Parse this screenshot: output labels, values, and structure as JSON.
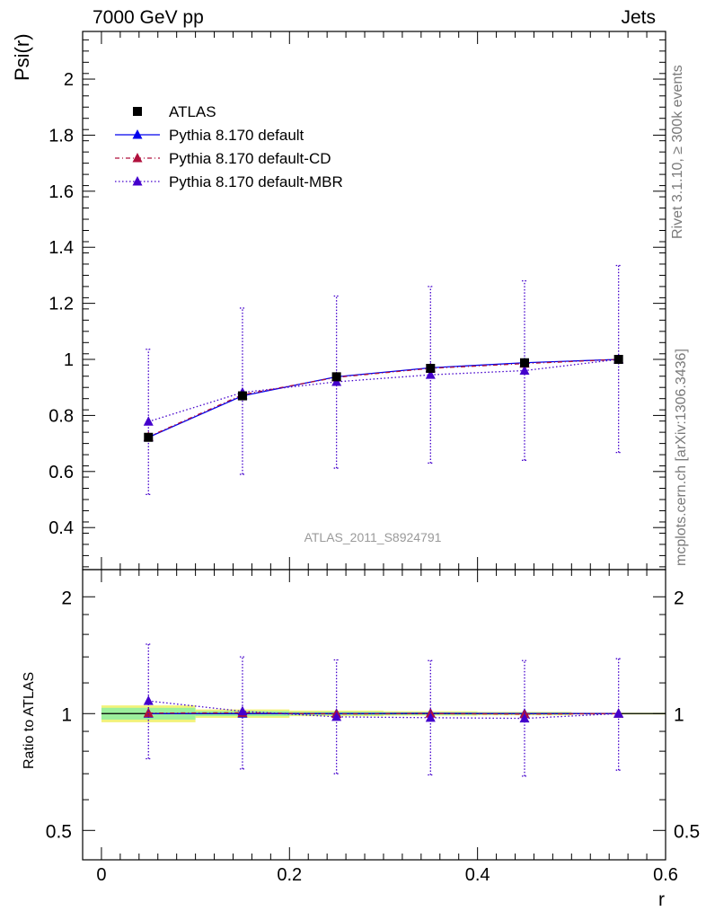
{
  "header": {
    "left": "7000 GeV pp",
    "right": "Jets"
  },
  "side_labels": {
    "rivet": "Rivet 3.1.10, ≥ 300k events",
    "mcplots": "mcplots.cern.ch [arXiv:1306.3436]"
  },
  "chart_data": [
    {
      "type": "scatter",
      "panel": "main",
      "ylabel": "Psi(r)",
      "watermark": "ATLAS_2011_S8924791",
      "xlim": [
        -0.02,
        0.6
      ],
      "ylim": [
        0.25,
        2.17
      ],
      "yticks": [
        0.4,
        0.6,
        0.8,
        1,
        1.2,
        1.4,
        1.6,
        1.8,
        2
      ],
      "ytick_labels": [
        "0.4",
        "0.6",
        "0.8",
        "1",
        "1.2",
        "1.4",
        "1.6",
        "1.8",
        "2"
      ],
      "legend_position": "top-left",
      "series": [
        {
          "name": "ATLAS",
          "marker": "square",
          "color": "#000000",
          "line": "none",
          "x": [
            0.05,
            0.15,
            0.25,
            0.35,
            0.45,
            0.55
          ],
          "y": [
            0.722,
            0.87,
            0.938,
            0.968,
            0.988,
            1.0
          ]
        },
        {
          "name": "Pythia 8.170 default",
          "marker": "triangle",
          "color": "#0000ee",
          "line": "solid",
          "x": [
            0.05,
            0.15,
            0.25,
            0.35,
            0.45,
            0.55
          ],
          "y": [
            0.722,
            0.87,
            0.938,
            0.97,
            0.988,
            1.0
          ]
        },
        {
          "name": "Pythia 8.170 default-CD",
          "marker": "triangle",
          "color": "#b0103c",
          "line": "dashdot",
          "x": [
            0.05,
            0.15,
            0.25,
            0.35,
            0.45,
            0.55
          ],
          "y": [
            0.724,
            0.874,
            0.936,
            0.968,
            0.985,
            1.0
          ]
        },
        {
          "name": "Pythia 8.170 default-MBR",
          "marker": "triangle",
          "color": "#4400cc",
          "line": "dotted",
          "x": [
            0.05,
            0.15,
            0.25,
            0.35,
            0.45,
            0.55
          ],
          "y": [
            0.778,
            0.882,
            0.92,
            0.945,
            0.96,
            1.0
          ],
          "err_low": [
            0.518,
            0.59,
            0.612,
            0.63,
            0.64,
            0.668
          ],
          "err_high": [
            1.036,
            1.183,
            1.226,
            1.26,
            1.28,
            1.335
          ]
        }
      ]
    },
    {
      "type": "scatter",
      "panel": "ratio",
      "ylabel": "Ratio to ATLAS",
      "xlabel": "r",
      "xlim": [
        -0.02,
        0.6
      ],
      "ylim": [
        0.42,
        2.35
      ],
      "log_y": true,
      "yticks": [
        0.5,
        1,
        2
      ],
      "ytick_labels": [
        "0.5",
        "1",
        "2"
      ],
      "xticks": [
        0,
        0.2,
        0.4,
        0.6
      ],
      "xtick_labels": [
        "0",
        "0.2",
        "0.4",
        "0.6"
      ],
      "bands": [
        {
          "x0": 0.0,
          "x1": 0.1,
          "inner": [
            0.965,
            1.035
          ],
          "outer": [
            0.95,
            1.05
          ]
        },
        {
          "x0": 0.1,
          "x1": 0.2,
          "inner": [
            0.985,
            1.015
          ],
          "outer": [
            0.975,
            1.025
          ]
        },
        {
          "x0": 0.2,
          "x1": 0.3,
          "inner": [
            0.99,
            1.01
          ],
          "outer": [
            0.985,
            1.018
          ]
        },
        {
          "x0": 0.3,
          "x1": 0.4,
          "inner": [
            0.992,
            1.008
          ],
          "outer": [
            0.988,
            1.014
          ]
        },
        {
          "x0": 0.4,
          "x1": 0.5,
          "inner": [
            0.994,
            1.006
          ],
          "outer": [
            0.99,
            1.01
          ]
        },
        {
          "x0": 0.5,
          "x1": 0.6,
          "inner": [
            0.997,
            1.003
          ],
          "outer": [
            0.995,
            1.005
          ]
        }
      ],
      "series": [
        {
          "name": "Pythia 8.170 default",
          "marker": "triangle",
          "color": "#0000ee",
          "line": "solid",
          "x": [
            0.05,
            0.15,
            0.25,
            0.35,
            0.45,
            0.55
          ],
          "y": [
            1.0,
            1.0,
            1.0,
            1.002,
            1.0,
            1.0
          ]
        },
        {
          "name": "Pythia 8.170 default-CD",
          "marker": "triangle",
          "color": "#b0103c",
          "line": "dashdot",
          "x": [
            0.05,
            0.15,
            0.25,
            0.35,
            0.45,
            0.55
          ],
          "y": [
            1.003,
            1.005,
            0.998,
            1.0,
            0.997,
            1.0
          ]
        },
        {
          "name": "Pythia 8.170 default-MBR",
          "marker": "triangle",
          "color": "#4400cc",
          "line": "dotted",
          "x": [
            0.05,
            0.15,
            0.25,
            0.35,
            0.45,
            0.55
          ],
          "y": [
            1.078,
            1.014,
            0.981,
            0.976,
            0.972,
            1.0
          ],
          "err_low": [
            0.765,
            0.72,
            0.7,
            0.695,
            0.69,
            0.715
          ],
          "err_high": [
            1.51,
            1.4,
            1.375,
            1.37,
            1.37,
            1.385
          ]
        }
      ]
    }
  ]
}
